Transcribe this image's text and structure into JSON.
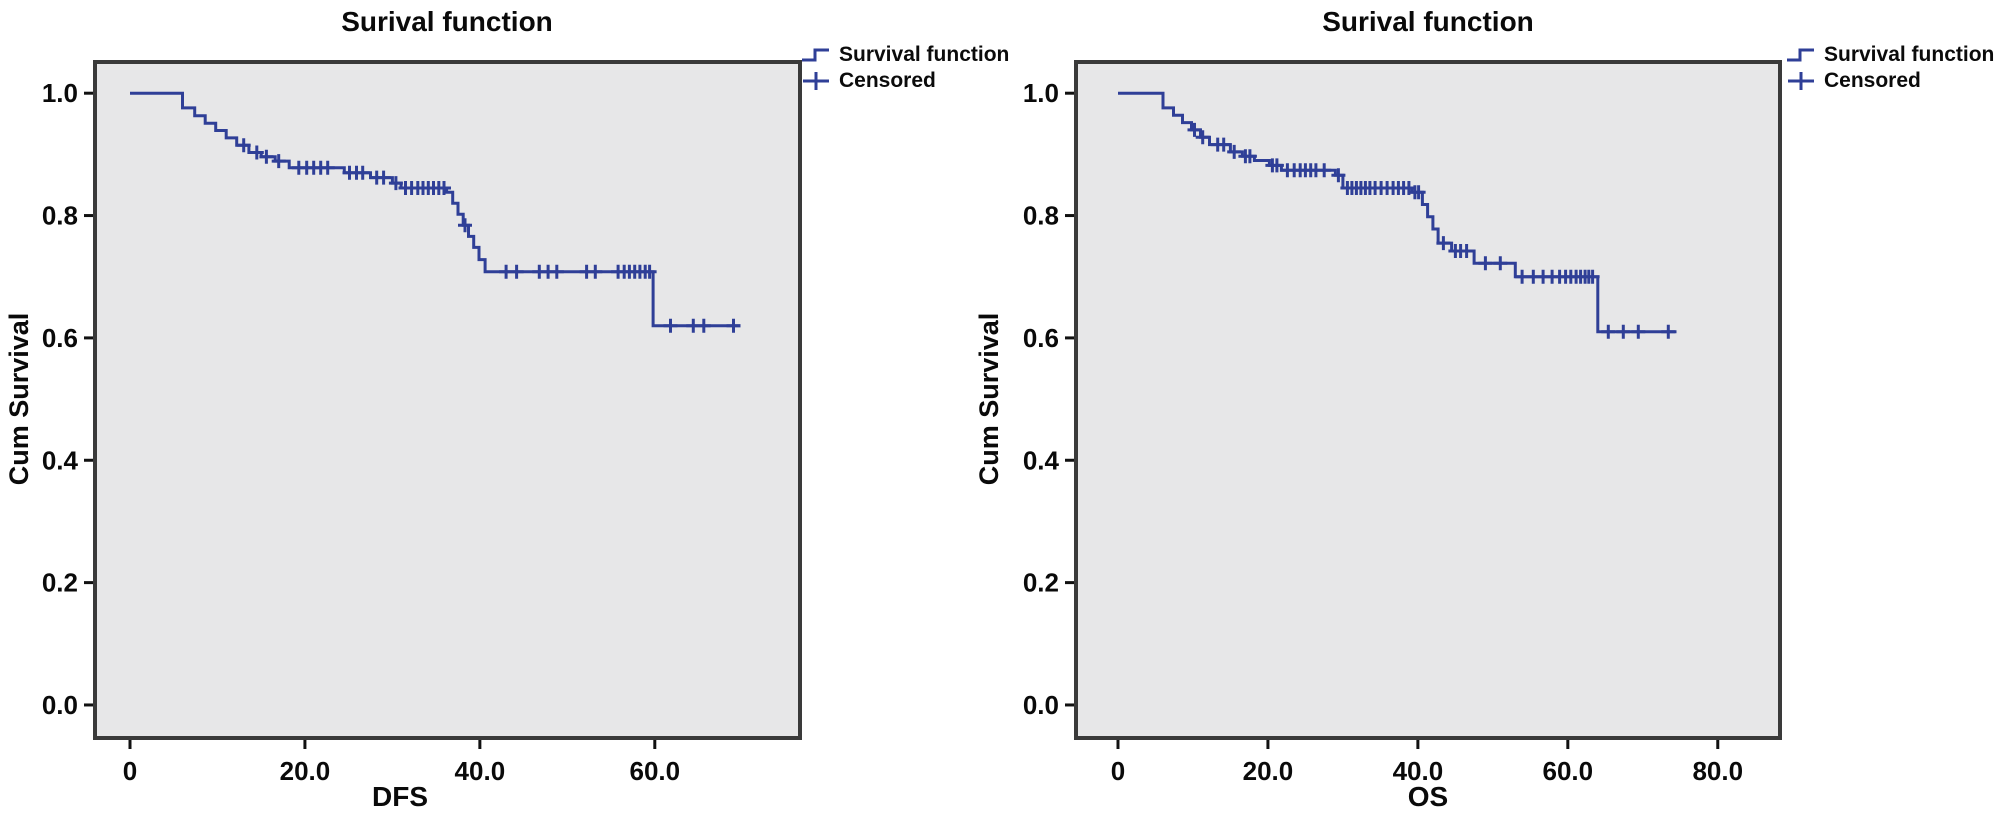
{
  "figure": {
    "description": "Two Kaplan-Meier survival curves"
  },
  "chart_data": [
    {
      "type": "line",
      "subtype": "kaplan_meier_step",
      "title": "Surival function",
      "xlabel": "DFS",
      "ylabel": "Cum Survival",
      "legend": {
        "survival_label": "Survival function",
        "censored_label": "Censored",
        "position": "top-right-outside"
      },
      "grid": false,
      "xticks": [
        0,
        20,
        40,
        60
      ],
      "yticks": [
        0.0,
        0.2,
        0.4,
        0.6,
        0.8,
        1.0
      ],
      "xlim": [
        -4,
        76.6
      ],
      "ylim": [
        -0.054,
        1.051
      ],
      "colors": {
        "line": "#2f3f97",
        "plot_bg": "#e7e7e8",
        "border": "#3a3a3a",
        "tick": "#111111",
        "text": "#0a0a0a"
      },
      "series": [
        {
          "name": "Survival function",
          "start": [
            0,
            1.0
          ],
          "end_time": 69.8,
          "step_points": [
            [
              6,
              0.976
            ],
            [
              7.4,
              0.963
            ],
            [
              8.6,
              0.951
            ],
            [
              9.8,
              0.939
            ],
            [
              11,
              0.927
            ],
            [
              12.2,
              0.915
            ],
            [
              13.6,
              0.903
            ],
            [
              15,
              0.896
            ],
            [
              16.6,
              0.889
            ],
            [
              18.2,
              0.878
            ],
            [
              24.5,
              0.87
            ],
            [
              27.5,
              0.862
            ],
            [
              30,
              0.853
            ],
            [
              31,
              0.845
            ],
            [
              36.2,
              0.838
            ],
            [
              36.9,
              0.82
            ],
            [
              37.5,
              0.802
            ],
            [
              38.1,
              0.784
            ],
            [
              38.7,
              0.766
            ],
            [
              39.3,
              0.748
            ],
            [
              39.9,
              0.728
            ],
            [
              40.6,
              0.708
            ],
            [
              59.8,
              0.62
            ]
          ]
        }
      ],
      "censored": [
        [
          13,
          0.915
        ],
        [
          14.5,
          0.903
        ],
        [
          15.6,
          0.896
        ],
        [
          17,
          0.889
        ],
        [
          19.3,
          0.878
        ],
        [
          20.2,
          0.878
        ],
        [
          21,
          0.878
        ],
        [
          21.8,
          0.878
        ],
        [
          22.6,
          0.878
        ],
        [
          25.1,
          0.87
        ],
        [
          25.9,
          0.87
        ],
        [
          26.6,
          0.87
        ],
        [
          28.2,
          0.862
        ],
        [
          29,
          0.862
        ],
        [
          30.4,
          0.853
        ],
        [
          31.5,
          0.845
        ],
        [
          32.2,
          0.845
        ],
        [
          32.9,
          0.845
        ],
        [
          33.5,
          0.845
        ],
        [
          34.1,
          0.845
        ],
        [
          34.7,
          0.845
        ],
        [
          35.3,
          0.845
        ],
        [
          35.9,
          0.845
        ],
        [
          38.3,
          0.784
        ],
        [
          43,
          0.708
        ],
        [
          44.2,
          0.708
        ],
        [
          46.8,
          0.708
        ],
        [
          47.8,
          0.708
        ],
        [
          48.8,
          0.708
        ],
        [
          52.2,
          0.708
        ],
        [
          53.2,
          0.708
        ],
        [
          55.8,
          0.708
        ],
        [
          56.5,
          0.708
        ],
        [
          57.1,
          0.708
        ],
        [
          57.7,
          0.708
        ],
        [
          58.3,
          0.708
        ],
        [
          58.9,
          0.708
        ],
        [
          59.4,
          0.708
        ],
        [
          61.8,
          0.62
        ],
        [
          64.4,
          0.62
        ],
        [
          65.6,
          0.62
        ],
        [
          69,
          0.62
        ]
      ]
    },
    {
      "type": "line",
      "subtype": "kaplan_meier_step",
      "title": "Surival function",
      "xlabel": "OS",
      "ylabel": "Cum Survival",
      "legend": {
        "survival_label": "Survival function",
        "censored_label": "Censored",
        "position": "top-right-outside"
      },
      "grid": false,
      "xticks": [
        0,
        20,
        40,
        60,
        80
      ],
      "yticks": [
        0.0,
        0.2,
        0.4,
        0.6,
        0.8,
        1.0
      ],
      "xlim": [
        -5.6,
        88.3
      ],
      "ylim": [
        -0.054,
        1.051
      ],
      "colors": {
        "line": "#2f3f97",
        "plot_bg": "#e7e7e8",
        "border": "#3a3a3a",
        "tick": "#111111",
        "text": "#0a0a0a"
      },
      "series": [
        {
          "name": "Survival function",
          "start": [
            0,
            1.0
          ],
          "end_time": 74.5,
          "step_points": [
            [
              6,
              0.976
            ],
            [
              7.4,
              0.964
            ],
            [
              8.6,
              0.952
            ],
            [
              9.8,
              0.94
            ],
            [
              11,
              0.928
            ],
            [
              12.2,
              0.916
            ],
            [
              15,
              0.904
            ],
            [
              16.6,
              0.897
            ],
            [
              18.2,
              0.89
            ],
            [
              20.2,
              0.882
            ],
            [
              21.8,
              0.874
            ],
            [
              29,
              0.866
            ],
            [
              30,
              0.845
            ],
            [
              39.2,
              0.838
            ],
            [
              40.6,
              0.818
            ],
            [
              41.3,
              0.798
            ],
            [
              42,
              0.778
            ],
            [
              42.7,
              0.755
            ],
            [
              44.5,
              0.742
            ],
            [
              47.5,
              0.722
            ],
            [
              53,
              0.7
            ],
            [
              64,
              0.61
            ]
          ]
        }
      ],
      "censored": [
        [
          10.2,
          0.94
        ],
        [
          11.3,
          0.928
        ],
        [
          13.3,
          0.916
        ],
        [
          14.1,
          0.916
        ],
        [
          15.5,
          0.904
        ],
        [
          17,
          0.897
        ],
        [
          17.6,
          0.897
        ],
        [
          20.6,
          0.882
        ],
        [
          21.2,
          0.882
        ],
        [
          22.6,
          0.874
        ],
        [
          23.5,
          0.874
        ],
        [
          24.3,
          0.874
        ],
        [
          25,
          0.874
        ],
        [
          25.7,
          0.874
        ],
        [
          26.4,
          0.874
        ],
        [
          27.5,
          0.874
        ],
        [
          29.4,
          0.866
        ],
        [
          30.6,
          0.845
        ],
        [
          31.2,
          0.845
        ],
        [
          31.8,
          0.845
        ],
        [
          32.4,
          0.845
        ],
        [
          33,
          0.845
        ],
        [
          33.6,
          0.845
        ],
        [
          34.3,
          0.845
        ],
        [
          35.1,
          0.845
        ],
        [
          35.9,
          0.845
        ],
        [
          36.7,
          0.845
        ],
        [
          37.4,
          0.845
        ],
        [
          38.1,
          0.845
        ],
        [
          38.8,
          0.845
        ],
        [
          39.6,
          0.838
        ],
        [
          40.1,
          0.838
        ],
        [
          43.4,
          0.755
        ],
        [
          45,
          0.742
        ],
        [
          45.7,
          0.742
        ],
        [
          46.5,
          0.742
        ],
        [
          49,
          0.722
        ],
        [
          51,
          0.722
        ],
        [
          53.9,
          0.7
        ],
        [
          55.4,
          0.7
        ],
        [
          56.7,
          0.7
        ],
        [
          57.9,
          0.7
        ],
        [
          58.9,
          0.7
        ],
        [
          59.7,
          0.7
        ],
        [
          60.4,
          0.7
        ],
        [
          61.1,
          0.7
        ],
        [
          61.7,
          0.7
        ],
        [
          62.3,
          0.7
        ],
        [
          62.8,
          0.7
        ],
        [
          63.3,
          0.7
        ],
        [
          65.4,
          0.61
        ],
        [
          67.4,
          0.61
        ],
        [
          69.4,
          0.61
        ],
        [
          73.4,
          0.61
        ]
      ]
    }
  ]
}
